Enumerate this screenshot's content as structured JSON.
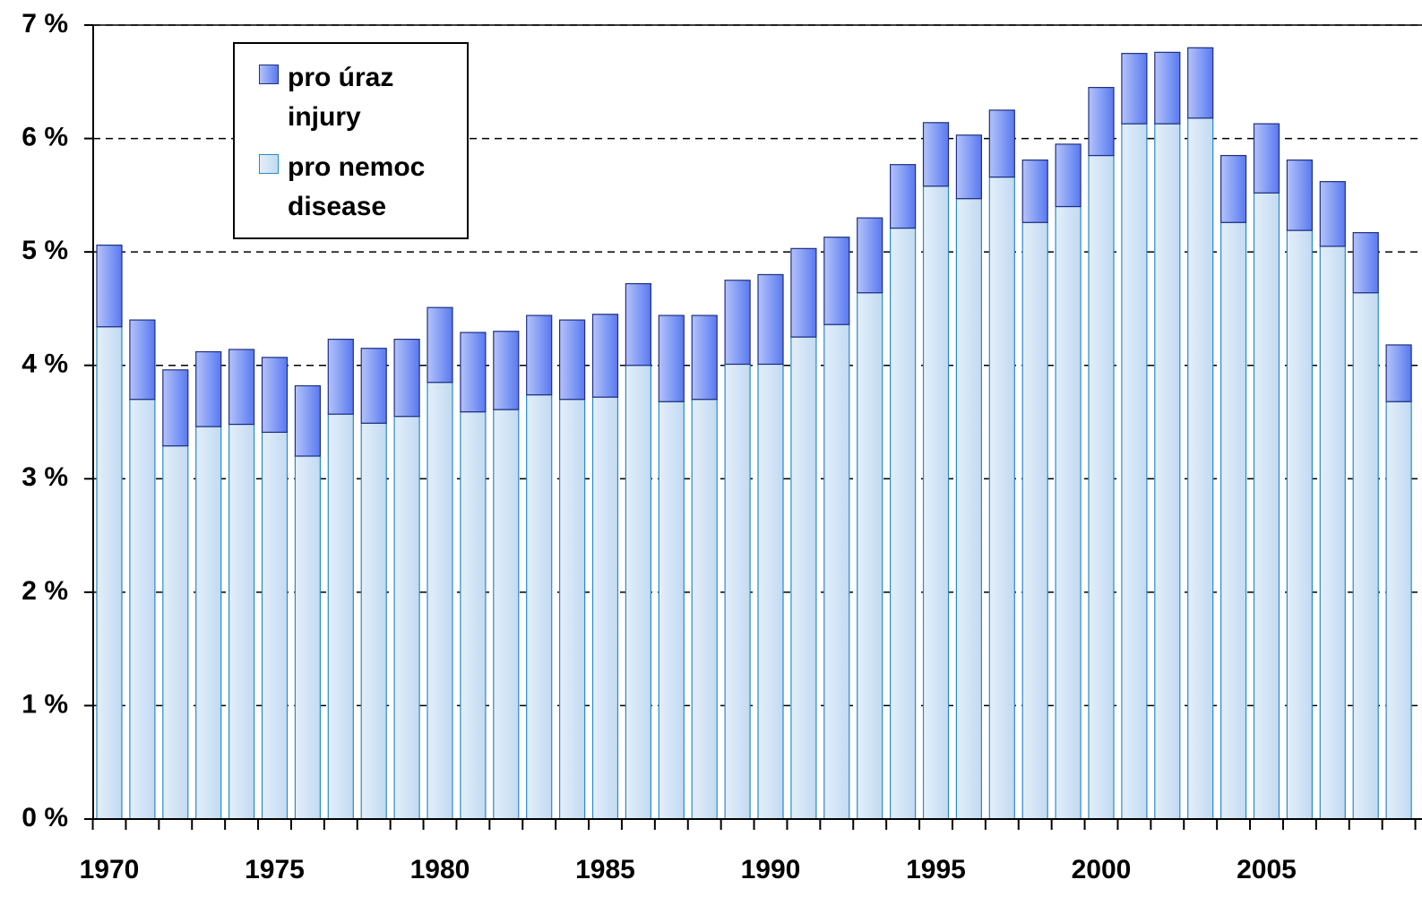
{
  "chart_data": {
    "type": "stacked_bar",
    "categories": [
      "1970",
      null,
      null,
      null,
      null,
      "1975",
      null,
      null,
      null,
      null,
      "1980",
      null,
      null,
      null,
      null,
      "1985",
      null,
      null,
      null,
      null,
      "1990",
      null,
      null,
      null,
      null,
      "1995",
      null,
      null,
      null,
      null,
      "2000",
      null,
      null,
      null,
      null,
      "2005",
      null,
      null,
      null,
      null
    ],
    "series": [
      {
        "name": "pro nemoc\ndisease",
        "color": "#c2daf2",
        "edge": "#2a8ac8",
        "values": [
          4.34,
          3.7,
          3.29,
          3.46,
          3.48,
          3.41,
          3.2,
          3.57,
          3.49,
          3.55,
          3.85,
          3.59,
          3.61,
          3.74,
          3.7,
          3.72,
          4.0,
          3.68,
          3.7,
          4.01,
          4.01,
          4.25,
          4.36,
          4.64,
          5.21,
          5.58,
          5.47,
          5.66,
          5.26,
          5.4,
          5.85,
          6.13,
          6.13,
          6.18,
          5.26,
          5.52,
          5.19,
          5.05,
          4.64,
          3.68
        ]
      },
      {
        "name": "pro úraz\ninjury",
        "color": "#5a78f0",
        "edge": "#1e2f80",
        "values": [
          0.72,
          0.7,
          0.67,
          0.66,
          0.66,
          0.66,
          0.62,
          0.66,
          0.66,
          0.68,
          0.66,
          0.7,
          0.69,
          0.7,
          0.7,
          0.73,
          0.72,
          0.76,
          0.74,
          0.74,
          0.79,
          0.78,
          0.77,
          0.66,
          0.56,
          0.56,
          0.56,
          0.59,
          0.55,
          0.55,
          0.6,
          0.62,
          0.63,
          0.62,
          0.59,
          0.61,
          0.62,
          0.57,
          0.53,
          0.5
        ]
      }
    ],
    "ylim": [
      0,
      7
    ],
    "yticks": [
      {
        "value": 0,
        "label": "0 %"
      },
      {
        "value": 1,
        "label": "1 %"
      },
      {
        "value": 2,
        "label": "2 %"
      },
      {
        "value": 3,
        "label": "3 %"
      },
      {
        "value": 4,
        "label": "4 %"
      },
      {
        "value": 5,
        "label": "5 %"
      },
      {
        "value": 6,
        "label": "6 %"
      },
      {
        "value": 7,
        "label": "7 %"
      }
    ],
    "grid": true
  }
}
